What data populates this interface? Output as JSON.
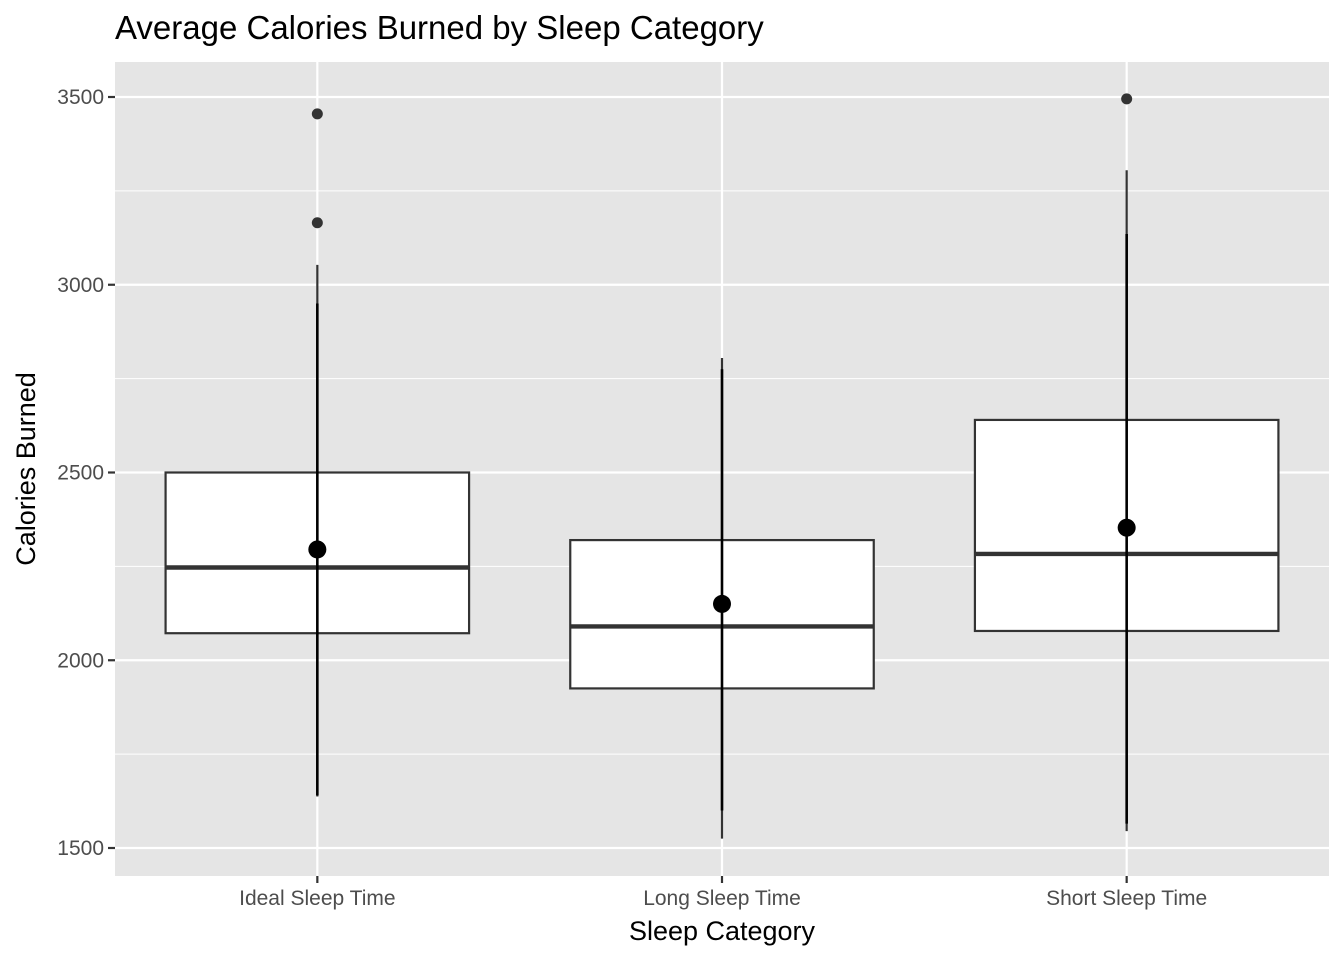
{
  "chart_data": {
    "type": "boxplot",
    "title": "Average Calories Burned by Sleep Category",
    "xlabel": "Sleep Category",
    "ylabel": "Calories Burned",
    "ylim": [
      1430,
      3600
    ],
    "yticks": [
      1500,
      2000,
      2500,
      3000,
      3500
    ],
    "categories": [
      "Ideal Sleep Time",
      "Long Sleep Time",
      "Short Sleep Time"
    ],
    "boxes": [
      {
        "category": "Ideal Sleep Time",
        "q1": 2072,
        "median": 2247,
        "q3": 2500,
        "whisker_low": 1637,
        "whisker_high": 3053,
        "errorbar_low": 1640,
        "errorbar_high": 2950,
        "mean": 2295,
        "outliers": [
          3165,
          3455
        ]
      },
      {
        "category": "Long Sleep Time",
        "q1": 1925,
        "median": 2090,
        "q3": 2320,
        "whisker_low": 1525,
        "whisker_high": 2805,
        "errorbar_low": 1600,
        "errorbar_high": 2775,
        "mean": 2150,
        "outliers": []
      },
      {
        "category": "Short Sleep Time",
        "q1": 2078,
        "median": 2283,
        "q3": 2640,
        "whisker_low": 1545,
        "whisker_high": 3305,
        "errorbar_low": 1565,
        "errorbar_high": 3135,
        "mean": 2353,
        "outliers": [
          3495
        ]
      }
    ],
    "grid": true,
    "panel_background": "#e5e5e5",
    "grid_color": "#ffffff",
    "box_fill": "#ffffff",
    "box_stroke": "#333333",
    "point_color": "#000000",
    "outlier_color": "#333333"
  }
}
